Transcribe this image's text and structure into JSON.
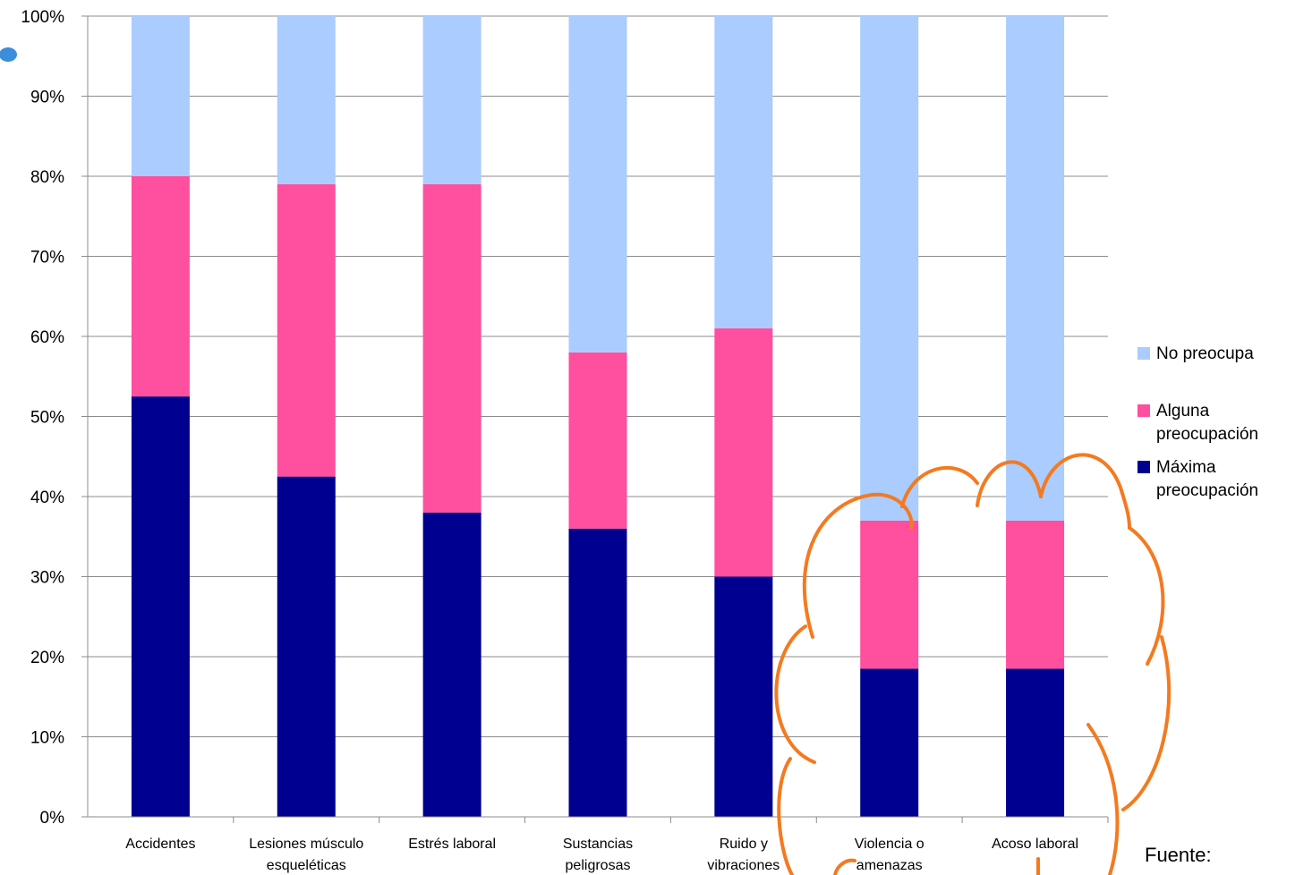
{
  "chart_data": {
    "type": "bar",
    "stacked": true,
    "percent_stacked": true,
    "categories": [
      [
        "Accidentes"
      ],
      [
        "Lesiones músculo",
        "esqueléticas"
      ],
      [
        "Estrés laboral"
      ],
      [
        "Sustancias",
        "peligrosas"
      ],
      [
        "Ruido y",
        "vibraciones"
      ],
      [
        "Violencia o",
        "amenazas"
      ],
      [
        "Acoso laboral"
      ]
    ],
    "series": [
      {
        "name": "Máxima preocupación",
        "color": "#000090",
        "values": [
          52.5,
          42.5,
          38,
          36,
          30,
          18.5,
          18.5
        ]
      },
      {
        "name": "Alguna preocupación",
        "color": "#ff4f9e",
        "values": [
          27.5,
          36.5,
          41,
          22,
          31,
          18.5,
          18.5
        ]
      },
      {
        "name": "No preocupa",
        "color": "#aaccff",
        "values": [
          20,
          21,
          21,
          42,
          39,
          63,
          63
        ]
      }
    ],
    "legend": {
      "position": "right",
      "items": [
        {
          "lines": [
            "No preocupa"
          ],
          "color": "#aaccff"
        },
        {
          "lines": [
            "Alguna",
            "preocupación"
          ],
          "color": "#ff4f9e"
        },
        {
          "lines": [
            "Máxima",
            "preocupación"
          ],
          "color": "#000090"
        }
      ]
    },
    "y_ticks": [
      "0%",
      "10%",
      "20%",
      "30%",
      "40%",
      "50%",
      "60%",
      "70%",
      "80%",
      "90%",
      "100%"
    ],
    "ylim": [
      0,
      100
    ],
    "grid": true,
    "title": "",
    "xlabel": "",
    "ylabel": ""
  },
  "annotation": {
    "source_label": "Fuente:",
    "cloud_color": "#f47a20"
  }
}
